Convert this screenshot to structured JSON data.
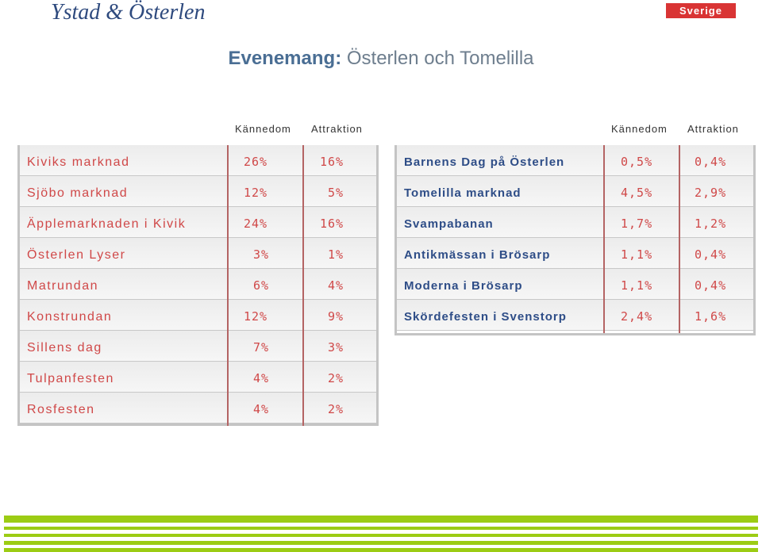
{
  "header": {
    "brand": "Ystad & Österlen",
    "country_badge": "Sverige",
    "title_bold": "Evenemang:",
    "title_rest": " Österlen och Tomelilla"
  },
  "columns": {
    "left": [
      "Kännedom",
      "Attraktion"
    ],
    "right": [
      "Kännedom",
      "Attraktion"
    ]
  },
  "left_table": [
    {
      "name": "Kiviks marknad",
      "k": "26%",
      "a": "16%"
    },
    {
      "name": "Sjöbo marknad",
      "k": "12%",
      "a": "5%"
    },
    {
      "name": "Äpplemarknaden i Kivik",
      "k": "24%",
      "a": "16%"
    },
    {
      "name": "Österlen Lyser",
      "k": "3%",
      "a": "1%"
    },
    {
      "name": "Matrundan",
      "k": "6%",
      "a": "4%"
    },
    {
      "name": "Konstrundan",
      "k": "12%",
      "a": "9%"
    },
    {
      "name": "Sillens dag",
      "k": "7%",
      "a": "3%"
    },
    {
      "name": "Tulpanfesten",
      "k": "4%",
      "a": "2%"
    },
    {
      "name": "Rosfesten",
      "k": "4%",
      "a": "2%"
    }
  ],
  "right_table": [
    {
      "name": "Barnens Dag på Österlen",
      "k": "0,5%",
      "a": "0,4%"
    },
    {
      "name": "Tomelilla marknad",
      "k": "4,5%",
      "a": "2,9%"
    },
    {
      "name": "Svampabanan",
      "k": "1,7%",
      "a": "1,2%"
    },
    {
      "name": "Antikmässan i Brösarp",
      "k": "1,1%",
      "a": "0,4%"
    },
    {
      "name": "Moderna i Brösarp",
      "k": "1,1%",
      "a": "0,4%"
    },
    {
      "name": "Skördefesten i Svenstorp",
      "k": "2,4%",
      "a": "1,6%"
    }
  ],
  "colors": {
    "name_left": "#d04848",
    "name_right": "#2e4d87",
    "values": "#d04848",
    "badge": "#d93434",
    "stripe": "#9ccc14"
  }
}
